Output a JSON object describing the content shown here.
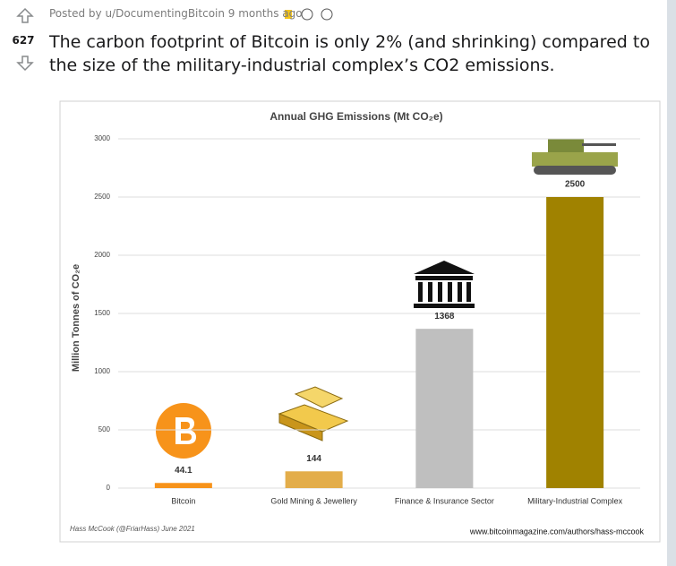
{
  "post": {
    "byline": "Posted by u/DocumentingBitcoin 9 months ago",
    "votes": "627",
    "title": "The carbon footprint of Bitcoin is only 2% (and shrinking) compared to the size of the military-industrial complex’s CO2 emissions."
  },
  "chart_data": {
    "type": "bar",
    "title": "Annual GHG Emissions (Mt CO₂e)",
    "y_label": "Million Tonnes of CO₂e",
    "categories": [
      "Bitcoin",
      "Gold Mining & Jewellery",
      "Finance & Insurance Sector",
      "Military-Industrial Complex"
    ],
    "values": [
      44.1,
      144,
      1368,
      2500
    ],
    "colors": [
      "#f7931a",
      "#e3ad4a",
      "#bfbfbf",
      "#a08200"
    ],
    "ylim": [
      0,
      3000
    ],
    "yticks": [
      0,
      500,
      1000,
      1500,
      2000,
      2500,
      3000
    ],
    "grid": true,
    "credit": "Hass McCook (@FriarHass) June 2021",
    "source": "www.bitcoinmagazine.com/authors/hass-mccook"
  }
}
